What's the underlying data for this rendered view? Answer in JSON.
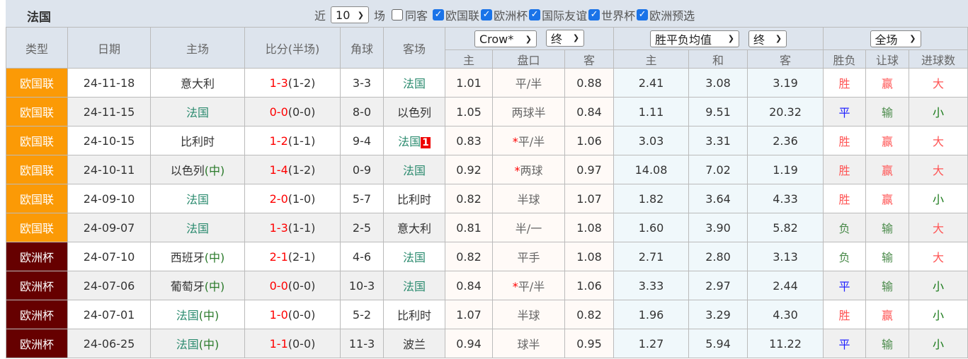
{
  "title": "法国",
  "filters": {
    "recent_label": "近",
    "recent_value": "10",
    "games_label": "场",
    "same_host": {
      "label": "同客",
      "checked": false
    },
    "competitions": [
      {
        "label": "欧国联",
        "checked": true
      },
      {
        "label": "欧洲杯",
        "checked": true
      },
      {
        "label": "国际友谊",
        "checked": true
      },
      {
        "label": "世界杯",
        "checked": true
      },
      {
        "label": "欧洲预选",
        "checked": true
      }
    ]
  },
  "colors": {
    "nations_league": "#fb9a06",
    "euro": "#660000",
    "accent_checkbox": "#1a73e8"
  },
  "headers": {
    "type": "类型",
    "date": "日期",
    "home": "主场",
    "score": "比分(半场)",
    "corners": "角球",
    "away": "客场",
    "company_select": "Crow*",
    "company_stage": "终",
    "avg_select": "胜平负均值",
    "avg_stage": "终",
    "scope_select": "全场",
    "sub": [
      "主",
      "盘口",
      "客",
      "主",
      "和",
      "客",
      "胜负",
      "让球",
      "进球数"
    ]
  },
  "rows": [
    {
      "type": "欧国联",
      "date": "24-11-18",
      "home": "意大利",
      "home_neutral": false,
      "home_fr": false,
      "ft": "1-3",
      "ht": "(1-2)",
      "corners": "3-3",
      "away": "法国",
      "away_fr": true,
      "badge": "",
      "h": "1.01",
      "line": "平/半",
      "star": false,
      "a": "0.88",
      "w": "2.41",
      "d": "3.08",
      "l": "3.19",
      "r1": "胜",
      "r2": "赢",
      "r3": "大"
    },
    {
      "type": "欧国联",
      "date": "24-11-15",
      "home": "法国",
      "home_neutral": false,
      "home_fr": true,
      "ft": "0-0",
      "ht": "(0-0)",
      "corners": "8-0",
      "away": "以色列",
      "away_fr": false,
      "badge": "",
      "h": "1.05",
      "line": "两球半",
      "star": false,
      "a": "0.84",
      "w": "1.11",
      "d": "9.51",
      "l": "20.32",
      "r1": "平",
      "r2": "输",
      "r3": "小"
    },
    {
      "type": "欧国联",
      "date": "24-10-15",
      "home": "比利时",
      "home_neutral": false,
      "home_fr": false,
      "ft": "1-2",
      "ht": "(1-1)",
      "corners": "9-4",
      "away": "法国",
      "away_fr": true,
      "badge": "1",
      "h": "0.83",
      "line": "平/半",
      "star": true,
      "a": "1.06",
      "w": "3.03",
      "d": "3.31",
      "l": "2.36",
      "r1": "胜",
      "r2": "赢",
      "r3": "大"
    },
    {
      "type": "欧国联",
      "date": "24-10-11",
      "home": "以色列",
      "home_neutral": true,
      "home_fr": false,
      "ft": "1-4",
      "ht": "(1-2)",
      "corners": "0-9",
      "away": "法国",
      "away_fr": true,
      "badge": "",
      "h": "0.92",
      "line": "两球",
      "star": true,
      "a": "0.97",
      "w": "14.08",
      "d": "7.02",
      "l": "1.19",
      "r1": "胜",
      "r2": "赢",
      "r3": "大"
    },
    {
      "type": "欧国联",
      "date": "24-09-10",
      "home": "法国",
      "home_neutral": false,
      "home_fr": true,
      "ft": "2-0",
      "ht": "(1-0)",
      "corners": "5-7",
      "away": "比利时",
      "away_fr": false,
      "badge": "",
      "h": "0.82",
      "line": "半球",
      "star": false,
      "a": "1.07",
      "w": "1.82",
      "d": "3.64",
      "l": "4.33",
      "r1": "胜",
      "r2": "赢",
      "r3": "小"
    },
    {
      "type": "欧国联",
      "date": "24-09-07",
      "home": "法国",
      "home_neutral": false,
      "home_fr": true,
      "ft": "1-3",
      "ht": "(1-1)",
      "corners": "2-5",
      "away": "意大利",
      "away_fr": false,
      "badge": "",
      "h": "0.81",
      "line": "半/一",
      "star": false,
      "a": "1.08",
      "w": "1.60",
      "d": "3.90",
      "l": "5.82",
      "r1": "负",
      "r2": "输",
      "r3": "大"
    },
    {
      "type": "欧洲杯",
      "date": "24-07-10",
      "home": "西班牙",
      "home_neutral": true,
      "home_fr": false,
      "ft": "2-1",
      "ht": "(2-1)",
      "corners": "4-6",
      "away": "法国",
      "away_fr": true,
      "badge": "",
      "h": "0.82",
      "line": "平手",
      "star": false,
      "a": "1.08",
      "w": "2.71",
      "d": "2.80",
      "l": "3.13",
      "r1": "负",
      "r2": "输",
      "r3": "大"
    },
    {
      "type": "欧洲杯",
      "date": "24-07-06",
      "home": "葡萄牙",
      "home_neutral": true,
      "home_fr": false,
      "ft": "0-0",
      "ht": "(0-0)",
      "corners": "10-3",
      "away": "法国",
      "away_fr": true,
      "badge": "",
      "h": "0.84",
      "line": "平/半",
      "star": true,
      "a": "1.06",
      "w": "3.33",
      "d": "2.97",
      "l": "2.44",
      "r1": "平",
      "r2": "输",
      "r3": "小"
    },
    {
      "type": "欧洲杯",
      "date": "24-07-01",
      "home": "法国",
      "home_neutral": true,
      "home_fr": true,
      "ft": "1-0",
      "ht": "(0-0)",
      "corners": "5-2",
      "away": "比利时",
      "away_fr": false,
      "badge": "",
      "h": "1.07",
      "line": "半球",
      "star": false,
      "a": "0.82",
      "w": "1.96",
      "d": "3.29",
      "l": "4.30",
      "r1": "胜",
      "r2": "赢",
      "r3": "小"
    },
    {
      "type": "欧洲杯",
      "date": "24-06-25",
      "home": "法国",
      "home_neutral": true,
      "home_fr": true,
      "ft": "1-1",
      "ht": "(0-0)",
      "corners": "11-3",
      "away": "波兰",
      "away_fr": false,
      "badge": "",
      "h": "0.94",
      "line": "球半",
      "star": false,
      "a": "0.95",
      "w": "1.27",
      "d": "5.94",
      "l": "11.22",
      "r1": "平",
      "r2": "输",
      "r3": "小"
    }
  ],
  "neutral_mark": "(中)",
  "star_mark": "*"
}
